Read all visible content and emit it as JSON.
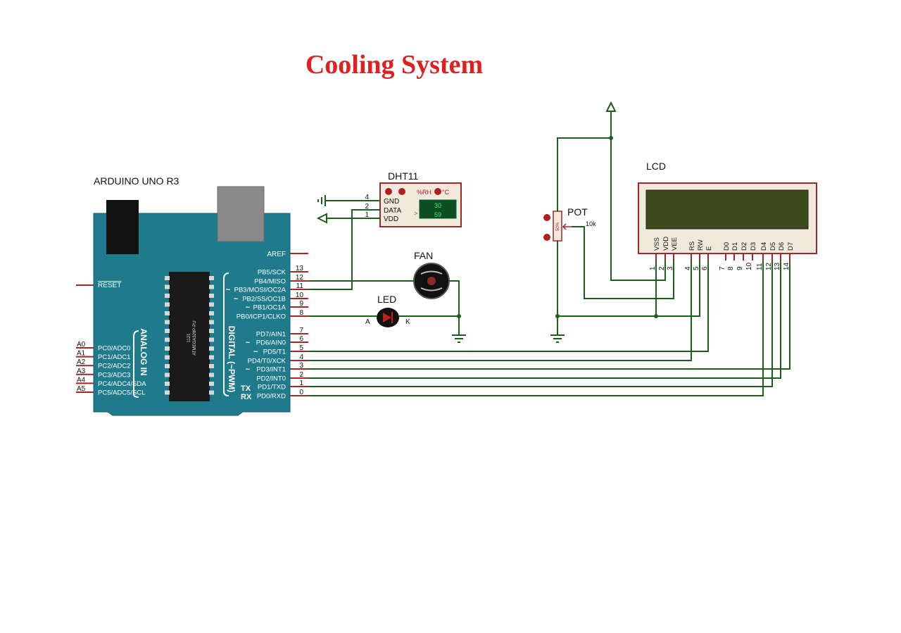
{
  "title": "Cooling System",
  "arduino": {
    "label": "ARDUINO UNO R3",
    "chip": "ATMEGA328P-PU",
    "chip_code": "1121",
    "analog_label": "ANALOG IN",
    "digital_label": "DIGITAL (~PWM)",
    "aref": "AREF",
    "reset": "RESET",
    "tx": "TX",
    "rx": "RX",
    "tilde": "~",
    "analog_pins": [
      {
        "pin": "A0",
        "label": "PC0/ADC0"
      },
      {
        "pin": "A1",
        "label": "PC1/ADC1"
      },
      {
        "pin": "A2",
        "label": "PC2/ADC2"
      },
      {
        "pin": "A3",
        "label": "PC3/ADC3"
      },
      {
        "pin": "A4",
        "label": "PC4/ADC4/SDA"
      },
      {
        "pin": "A5",
        "label": "PC5/ADC5/SCL"
      }
    ],
    "digital_pins": [
      {
        "num": "13",
        "label": "PB5/SCK",
        "pwm": false
      },
      {
        "num": "12",
        "label": "PB4/MISO",
        "pwm": false
      },
      {
        "num": "11",
        "label": "PB3/MOSI/OC2A",
        "pwm": true
      },
      {
        "num": "10",
        "label": "PB2/SS/OC1B",
        "pwm": true
      },
      {
        "num": "9",
        "label": "PB1/OC1A",
        "pwm": true
      },
      {
        "num": "8",
        "label": "PB0/ICP1/CLKO",
        "pwm": false
      },
      {
        "num": "7",
        "label": "PD7/AIN1",
        "pwm": false
      },
      {
        "num": "6",
        "label": "PD6/AIN0",
        "pwm": true
      },
      {
        "num": "5",
        "label": "PD5/T1",
        "pwm": true
      },
      {
        "num": "4",
        "label": "PD4/T0/XCK",
        "pwm": false
      },
      {
        "num": "3",
        "label": "PD3/INT1",
        "pwm": true
      },
      {
        "num": "2",
        "label": "PD2/INT0",
        "pwm": false
      },
      {
        "num": "1",
        "label": "PD1/TXD",
        "pwm": false
      },
      {
        "num": "0",
        "label": "PD0/RXD",
        "pwm": false
      }
    ]
  },
  "dht11": {
    "label": "DHT11",
    "unit_rh": "%RH",
    "unit_c": "°C",
    "arrow": ">",
    "reading_top": "30",
    "reading_bottom": "59",
    "pins": [
      {
        "num": "4",
        "label": "GND"
      },
      {
        "num": "2",
        "label": "DATA"
      },
      {
        "num": "1",
        "label": "VDD"
      }
    ]
  },
  "fan": {
    "label": "FAN"
  },
  "led": {
    "label": "LED",
    "anode": "A",
    "cathode": "K"
  },
  "pot": {
    "label": "POT",
    "value": "10k",
    "setting": "50%"
  },
  "lcd": {
    "label": "LCD",
    "pins": [
      {
        "num": "1",
        "label": "VSS"
      },
      {
        "num": "2",
        "label": "VDD"
      },
      {
        "num": "3",
        "label": "VEE"
      },
      {
        "num": "4",
        "label": "RS"
      },
      {
        "num": "5",
        "label": "RW"
      },
      {
        "num": "6",
        "label": "E"
      },
      {
        "num": "7",
        "label": "D0"
      },
      {
        "num": "8",
        "label": "D1"
      },
      {
        "num": "9",
        "label": "D2"
      },
      {
        "num": "10",
        "label": "D3"
      },
      {
        "num": "11",
        "label": "D4"
      },
      {
        "num": "12",
        "label": "D5"
      },
      {
        "num": "13",
        "label": "D6"
      },
      {
        "num": "14",
        "label": "D7"
      }
    ]
  },
  "colors": {
    "title": "#e02020",
    "board": "#1f7a8c",
    "wire": "#1d5e1d",
    "lead": "#a02828",
    "lcd_screen": "#3c4a1c",
    "component_body": "#f2e9dc"
  }
}
